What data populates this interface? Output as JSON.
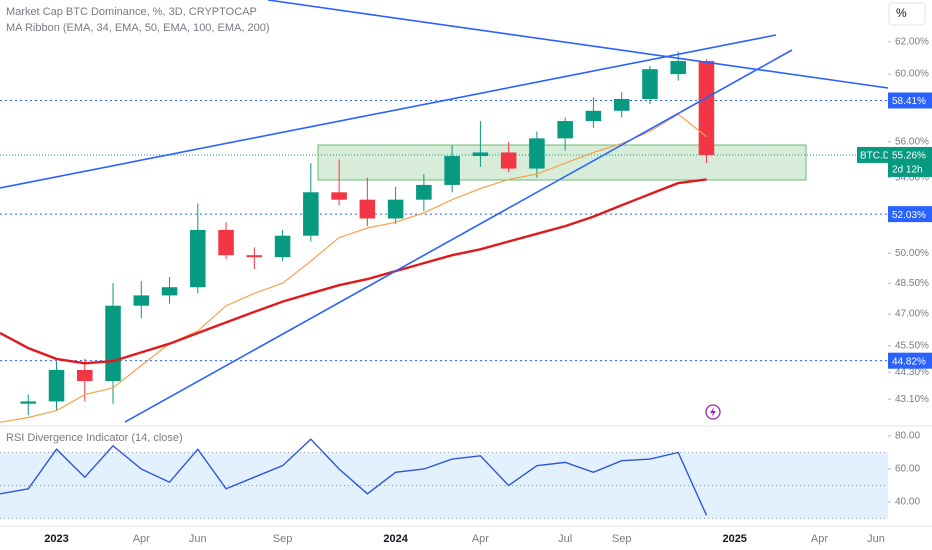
{
  "chart_data": [
    {
      "type": "candlestick",
      "title": "Market Cap BTC Dominance, %, 3D, CRYPTOCAP",
      "subtitle": "MA Ribbon (EMA, 34, EMA, 50, EMA, 100, EMA, 200)",
      "x": [
        "2022-11",
        "2022-12",
        "2023-01",
        "2023-02",
        "2023-03",
        "2023-04",
        "2023-05",
        "2023-06",
        "2023-07",
        "2023-08",
        "2023-09",
        "2023-10",
        "2023-11",
        "2023-12",
        "2024-01",
        "2024-02",
        "2024-03",
        "2024-04",
        "2024-05",
        "2024-06",
        "2024-07",
        "2024-08",
        "2024-09",
        "2024-10",
        "2024-11",
        "2024-12"
      ],
      "open": [
        null,
        42.9,
        43.0,
        44.4,
        43.9,
        47.4,
        47.9,
        48.3,
        51.2,
        49.9,
        49.8,
        50.9,
        53.2,
        52.8,
        51.8,
        52.8,
        53.6,
        55.2,
        55.4,
        54.5,
        56.2,
        57.2,
        57.8,
        58.5,
        60.0,
        60.8
      ],
      "high": [
        null,
        43.3,
        44.8,
        44.9,
        48.5,
        48.6,
        48.8,
        52.6,
        51.6,
        50.3,
        51.2,
        54.8,
        55.0,
        54.0,
        53.5,
        54.2,
        55.8,
        57.2,
        56.0,
        56.6,
        57.4,
        58.6,
        58.9,
        60.5,
        61.4,
        60.9
      ],
      "low": [
        null,
        42.4,
        42.6,
        43.0,
        42.9,
        46.8,
        47.5,
        48.0,
        49.7,
        49.2,
        49.6,
        50.6,
        52.5,
        51.4,
        51.5,
        52.2,
        53.2,
        54.6,
        54.3,
        54.0,
        55.5,
        56.8,
        57.4,
        58.2,
        59.6,
        54.8
      ],
      "close": [
        null,
        43.0,
        44.4,
        43.9,
        47.4,
        47.9,
        48.3,
        51.2,
        49.9,
        49.8,
        50.9,
        53.2,
        52.8,
        51.8,
        52.8,
        53.6,
        55.2,
        55.4,
        54.5,
        56.2,
        57.2,
        57.8,
        58.5,
        60.3,
        60.8,
        55.26
      ],
      "up_color": "#089981",
      "down_color": "#f23645",
      "overlays": [
        {
          "color": "#f7a24b",
          "values": [
            42.1,
            42.3,
            42.6,
            43.3,
            43.6,
            44.6,
            45.6,
            46.2,
            47.4,
            48.0,
            48.5,
            49.6,
            50.8,
            51.3,
            51.6,
            52.1,
            52.8,
            53.4,
            53.9,
            54.2,
            54.8,
            55.4,
            55.9,
            56.6,
            57.6,
            56.3
          ]
        },
        {
          "color": "#e0191b",
          "values": [
            46.1,
            45.4,
            44.9,
            44.7,
            44.8,
            45.2,
            45.6,
            46.1,
            46.6,
            47.1,
            47.6,
            48.0,
            48.4,
            48.7,
            49.1,
            49.5,
            49.9,
            50.2,
            50.6,
            51.0,
            51.4,
            51.9,
            52.5,
            53.1,
            53.7,
            53.9
          ]
        }
      ],
      "log_scale": true,
      "xlim": [
        "2022-11",
        "2025-06"
      ],
      "xticks": [
        {
          "value": "2023-01",
          "label": "2023"
        },
        {
          "value": "2023-04",
          "label": "Apr"
        },
        {
          "value": "2023-06",
          "label": "Jun"
        },
        {
          "value": "2023-09",
          "label": "Sep"
        },
        {
          "value": "2024-01",
          "label": "2024"
        },
        {
          "value": "2024-04",
          "label": "Apr"
        },
        {
          "value": "2024-07",
          "label": "Jul"
        },
        {
          "value": "2024-09",
          "label": "Sep"
        },
        {
          "value": "2025-01",
          "label": "2025"
        },
        {
          "value": "2025-04",
          "label": "Apr"
        },
        {
          "value": "2025-06",
          "label": "Jun"
        }
      ],
      "ylim": [
        41.98,
        64.7
      ],
      "yticks": [
        {
          "value": 62,
          "label": "62.00%"
        },
        {
          "value": 60,
          "label": "60.00%"
        },
        {
          "value": 56,
          "label": "56.00%"
        },
        {
          "value": 54,
          "label": "54.00%"
        },
        {
          "value": 50,
          "label": "50.00%"
        },
        {
          "value": 48.5,
          "label": "48.50%"
        },
        {
          "value": 47,
          "label": "47.00%"
        },
        {
          "value": 45.5,
          "label": "45.50%"
        },
        {
          "value": 44.3,
          "label": "44.30%"
        },
        {
          "value": 43.1,
          "label": "43.10%"
        }
      ],
      "levels": [
        {
          "value": 58.41,
          "label": "58.41%"
        },
        {
          "value": 52.03,
          "label": "52.03%"
        },
        {
          "value": 44.82,
          "label": "44.82%"
        }
      ],
      "level_color": "#2962ff",
      "last": {
        "value": 55.26,
        "label": "55.26%",
        "symbol": "BTC.D",
        "countdown": "2d 12h"
      },
      "unit_button": "%"
    },
    {
      "type": "line",
      "title": "RSI Divergence Indicator (14, close)",
      "values": [
        45,
        48,
        72,
        55,
        74,
        60,
        52,
        72,
        48,
        55,
        62,
        78,
        60,
        45,
        58,
        60,
        66,
        68,
        50,
        62,
        64,
        58,
        65,
        66,
        70,
        32
      ],
      "color": "#2f56d8",
      "ylim": [
        26.1,
        84.8
      ],
      "yticks": [
        {
          "value": 80,
          "label": "80.00"
        },
        {
          "value": 60,
          "label": "60.00"
        },
        {
          "value": 40,
          "label": "40.00"
        }
      ],
      "band": [
        30,
        70
      ],
      "midline": 50,
      "band_color": "#e3f0fd"
    }
  ]
}
